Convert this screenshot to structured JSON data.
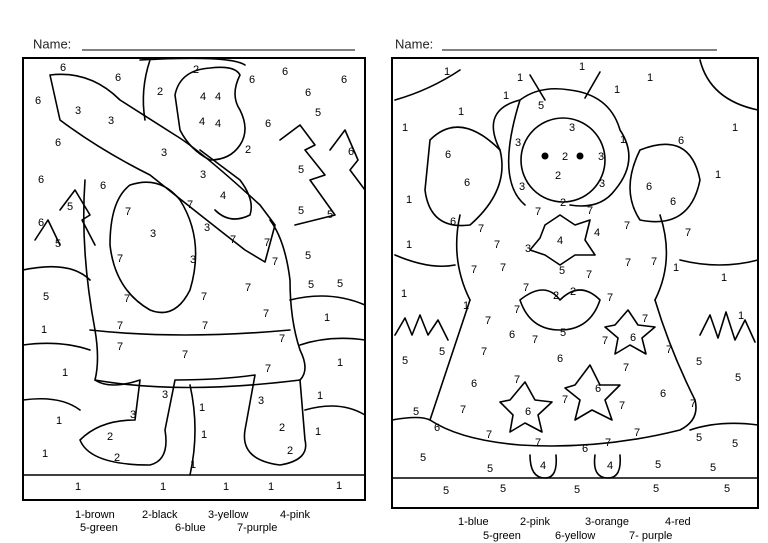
{
  "left": {
    "name_label": "Name:",
    "region_numbers": [
      6,
      6,
      2,
      2,
      6,
      6,
      6,
      6,
      4,
      4,
      6,
      3,
      3,
      4,
      4,
      6,
      5,
      6,
      3,
      2,
      6,
      6,
      3,
      4,
      5,
      6,
      5,
      7,
      7,
      3,
      3,
      7,
      5,
      6,
      7,
      5,
      5,
      7,
      3,
      7,
      5,
      5,
      5,
      7,
      7,
      7,
      5,
      1,
      7,
      7,
      7,
      1,
      7,
      7,
      7,
      1,
      7,
      1,
      3,
      3,
      1,
      1,
      3,
      1,
      1,
      2,
      1,
      2,
      1,
      2,
      2,
      1,
      1,
      1,
      1,
      1,
      1
    ],
    "key": [
      "1-brown",
      "2-black",
      "3-yellow",
      "4-pink",
      "5-green",
      "6-blue",
      "7-purple"
    ]
  },
  "right": {
    "name_label": "Name:",
    "region_numbers": [
      1,
      1,
      1,
      1,
      1,
      5,
      1,
      1,
      1,
      3,
      3,
      2,
      1,
      6,
      1,
      6,
      3,
      6,
      3,
      2,
      3,
      6,
      1,
      6,
      1,
      2,
      7,
      7,
      6,
      7,
      4,
      3,
      4,
      7,
      7,
      1,
      7,
      5,
      7,
      7,
      1,
      1,
      7,
      7,
      7,
      2,
      2,
      7,
      1,
      1,
      7,
      7,
      5,
      7,
      1,
      7,
      6,
      7,
      7,
      6,
      5,
      5,
      7,
      6,
      7,
      5,
      6,
      7,
      7,
      6,
      5,
      5,
      7,
      6,
      7,
      7,
      6,
      7,
      6,
      7,
      7,
      6,
      7,
      5,
      5,
      5,
      5,
      4,
      7,
      4,
      5,
      5,
      5,
      5,
      5,
      5,
      5
    ],
    "key": [
      "1-blue",
      "2-pink",
      "3-orange",
      "4-red",
      "5-green",
      "6-yellow",
      "7- purple"
    ]
  }
}
